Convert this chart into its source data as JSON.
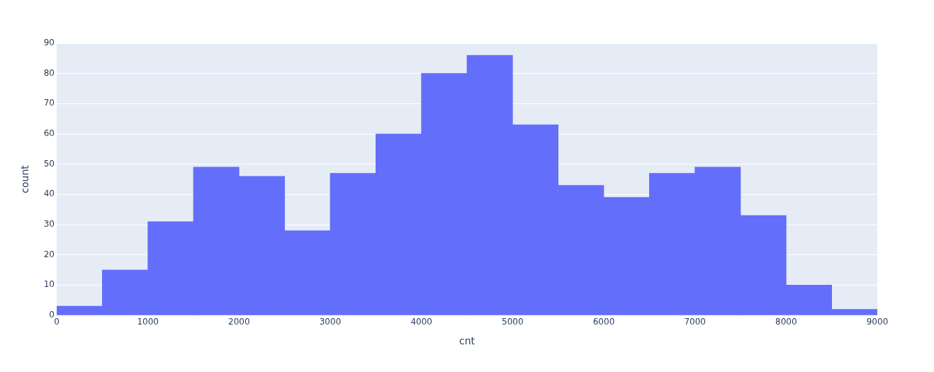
{
  "chart_data": {
    "type": "histogram",
    "xlabel": "cnt",
    "ylabel": "count",
    "bins": [
      0,
      500,
      1000,
      1500,
      2000,
      2500,
      3000,
      3500,
      4000,
      4500,
      5000,
      5500,
      6000,
      6500,
      7000,
      7500,
      8000,
      8500,
      9000
    ],
    "values": [
      3,
      15,
      31,
      49,
      46,
      28,
      47,
      60,
      80,
      86,
      63,
      43,
      39,
      47,
      49,
      33,
      10,
      2
    ],
    "color": "#636efa",
    "xlim": [
      0,
      9000
    ],
    "xticks": [
      0,
      1000,
      2000,
      3000,
      4000,
      5000,
      6000,
      7000,
      8000,
      9000
    ],
    "ylim": [
      0,
      90
    ],
    "yticks": [
      0,
      10,
      20,
      30,
      40,
      50,
      60,
      70,
      80,
      90
    ],
    "grid": "y"
  }
}
